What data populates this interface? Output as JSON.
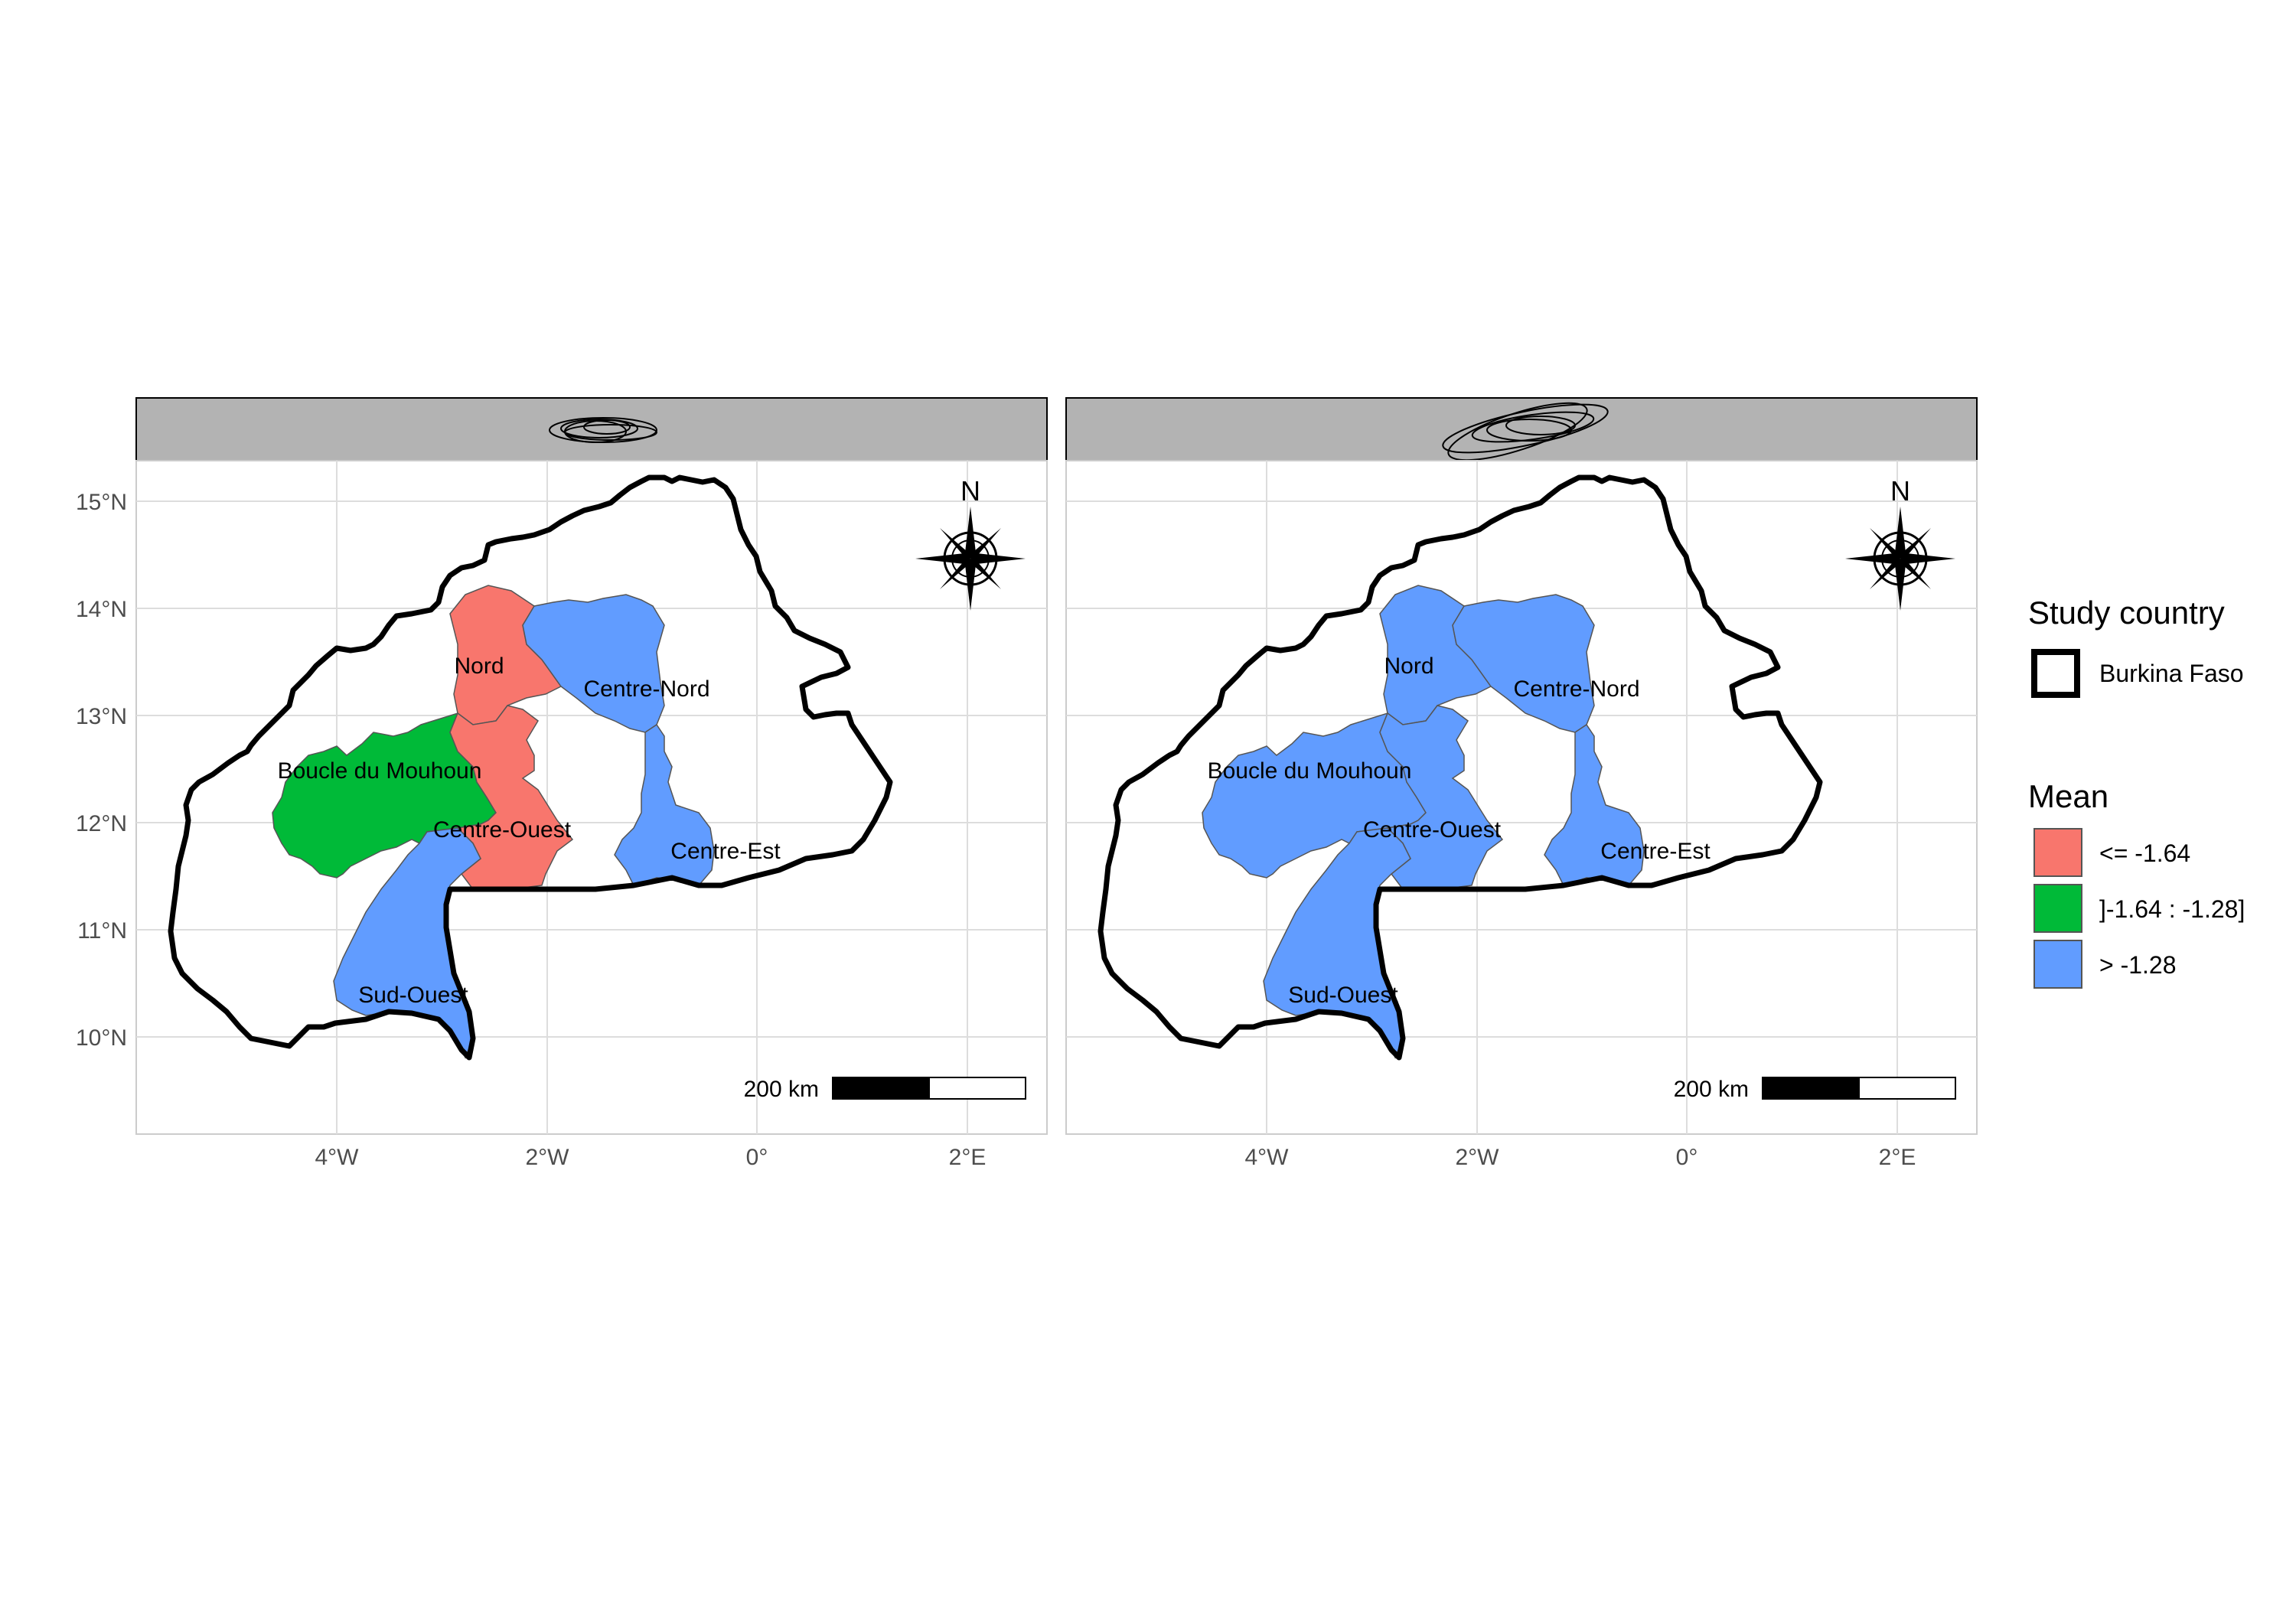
{
  "panels": [
    {
      "region_fills": {
        "Nord": "#F8766D",
        "Boucle du Mouhoun": "#00BA38",
        "Centre-Ouest": "#F8766D",
        "Centre-Nord": "#619CFF",
        "Centre-Est": "#619CFF",
        "Sud-Ouest": "#619CFF"
      }
    },
    {
      "region_fills": {
        "Nord": "#619CFF",
        "Boucle du Mouhoun": "#619CFF",
        "Centre-Ouest": "#619CFF",
        "Centre-Nord": "#619CFF",
        "Centre-Est": "#619CFF",
        "Sud-Ouest": "#619CFF"
      }
    }
  ],
  "region_labels": {
    "nord": "Nord",
    "boucle": "Boucle du Mouhoun",
    "centre_ouest": "Centre-Ouest",
    "centre_nord": "Centre-Nord",
    "centre_est": "Centre-Est",
    "sud_ouest": "Sud-Ouest"
  },
  "axes": {
    "y_ticks": [
      "15°N",
      "14°N",
      "13°N",
      "12°N",
      "11°N",
      "10°N"
    ],
    "x_ticks": [
      "4°W",
      "2°W",
      "0°",
      "2°E"
    ]
  },
  "north_arrow": {
    "label": "N"
  },
  "scale_bar": {
    "label": "200 km"
  },
  "legend": {
    "study_title": "Study country",
    "study_item": "Burkina Faso",
    "mean_title": "Mean",
    "items": [
      {
        "label": "<= -1.64",
        "color": "#F8766D"
      },
      {
        "label": "]-1.64 : -1.28]",
        "color": "#00BA38"
      },
      {
        "label": "> -1.28",
        "color": "#619CFF"
      }
    ]
  },
  "colors": {
    "strip_fill": "#B3B3B3",
    "grid": "#DDDDDD",
    "country_border": "#000000"
  }
}
